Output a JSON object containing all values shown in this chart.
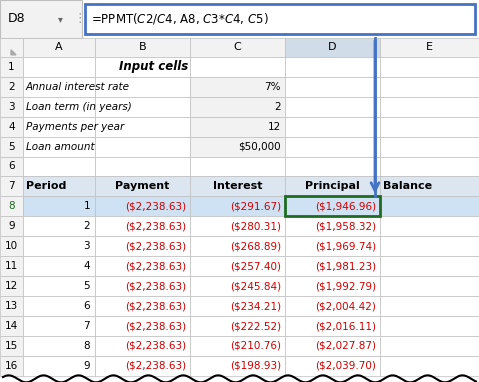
{
  "formula_bar_cell": "D8",
  "formula_bar_text": "=PPMT($C$2/$C$4, A8, $C$3*$C$4, $C$5)",
  "col_headers": [
    "A",
    "B",
    "C",
    "D",
    "E"
  ],
  "input_section": {
    "row1_label": "Input cells",
    "row2_label": "Annual interest rate",
    "row2_value": "7%",
    "row3_label": "Loan term (in years)",
    "row3_value": "2",
    "row4_label": "Payments per year",
    "row4_value": "12",
    "row5_label": "Loan amount",
    "row5_value": "$50,000"
  },
  "table_headers": [
    "Period",
    "Payment",
    "Interest",
    "Principal",
    "Balance"
  ],
  "table_data": [
    [
      1,
      "($2,238.63)",
      "($291.67)",
      "($1,946.96)",
      ""
    ],
    [
      2,
      "($2,238.63)",
      "($280.31)",
      "($1,958.32)",
      ""
    ],
    [
      3,
      "($2,238.63)",
      "($268.89)",
      "($1,969.74)",
      ""
    ],
    [
      4,
      "($2,238.63)",
      "($257.40)",
      "($1,981.23)",
      ""
    ],
    [
      5,
      "($2,238.63)",
      "($245.84)",
      "($1,992.79)",
      ""
    ],
    [
      6,
      "($2,238.63)",
      "($234.21)",
      "($2,004.42)",
      ""
    ],
    [
      7,
      "($2,238.63)",
      "($222.52)",
      "($2,016.11)",
      ""
    ],
    [
      8,
      "($2,238.63)",
      "($210.76)",
      "($2,027.87)",
      ""
    ],
    [
      9,
      "($2,238.63)",
      "($198.93)",
      "($2,039.70)",
      ""
    ]
  ],
  "colors": {
    "header_row7_bg": "#dce6f1",
    "row_selected_bg": "#cfe2f3",
    "red_text": "#cc0000",
    "black_text": "#000000",
    "grid_line": "#bfbfbf",
    "formula_bar_border": "#4472c4",
    "cell_selected_border": "#1e6b20",
    "arrow_color": "#4472c4",
    "col_header_D_bg": "#d0dce8",
    "col_header_bg": "#f2f2f2",
    "row_num_bg": "#f2f2f2",
    "input_value_bg": "#f2f2f2",
    "white": "#ffffff"
  }
}
